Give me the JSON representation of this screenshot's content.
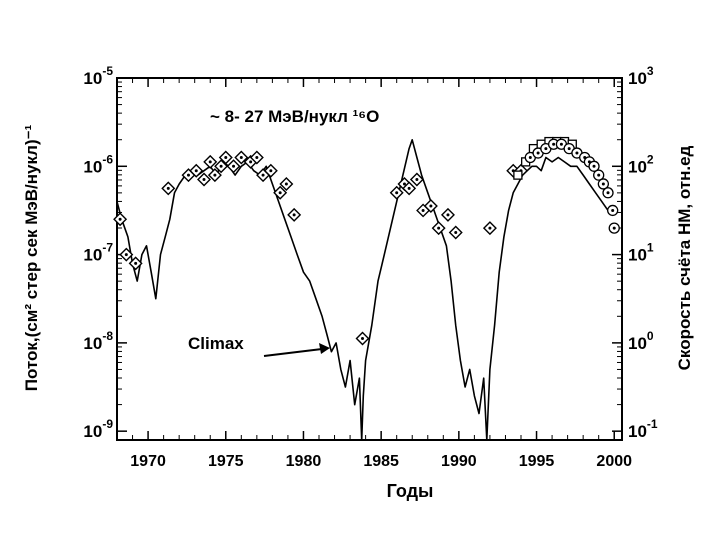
{
  "chart_data": {
    "type": "line",
    "title": "~ 8- 27 МэВ/нукл ¹⁶O",
    "xlabel": "Годы",
    "ylabel_left": "Поток,(см² стер сек МэВ/нукл)⁻¹",
    "ylabel_right": "Скорость счёта НМ, отн.ед",
    "annotation": "Climax",
    "xlim": [
      1968,
      2000.5
    ],
    "ylim_log10": [
      -9.1,
      -5
    ],
    "x_ticks": [
      "1970",
      "1975",
      "1980",
      "1985",
      "1990",
      "1995",
      "2000"
    ],
    "x_tick_values": [
      1970,
      1975,
      1980,
      1985,
      1990,
      1995,
      2000
    ],
    "y_left_ticks": [
      {
        "base": "10",
        "exp": "-5",
        "log": -5
      },
      {
        "base": "10",
        "exp": "-6",
        "log": -6
      },
      {
        "base": "10",
        "exp": "-7",
        "log": -7
      },
      {
        "base": "10",
        "exp": "-8",
        "log": -8
      },
      {
        "base": "10",
        "exp": "-9",
        "log": -9
      }
    ],
    "y_right_ticks": [
      {
        "base": "10",
        "exp": "3",
        "log": -5
      },
      {
        "base": "10",
        "exp": "2",
        "log": -6
      },
      {
        "base": "10",
        "exp": "1",
        "log": -7
      },
      {
        "base": "10",
        "exp": "0",
        "log": -8
      },
      {
        "base": "10",
        "exp": "-1",
        "log": -9
      }
    ],
    "grid": false,
    "series": [
      {
        "marker": "line",
        "x": [
          1968.0,
          1968.3,
          1968.7,
          1969.0,
          1969.3,
          1969.6,
          1969.9,
          1970.2,
          1970.5,
          1970.8,
          1971.1,
          1971.4,
          1971.7,
          1972.0,
          1972.4,
          1972.8,
          1973.2,
          1973.6,
          1974.0,
          1974.4,
          1974.8,
          1975.2,
          1975.6,
          1976.0,
          1976.4,
          1976.8,
          1977.2,
          1977.6,
          1978.0,
          1978.4,
          1978.8,
          1979.2,
          1979.6,
          1980.0,
          1980.4,
          1980.8,
          1981.2,
          1981.5,
          1981.8,
          1982.1,
          1982.4,
          1982.7,
          1983.0,
          1983.3,
          1983.6,
          1983.75,
          1983.85,
          1984.0,
          1984.4,
          1984.8,
          1985.2,
          1985.6,
          1986.0,
          1986.4,
          1986.8,
          1987.0,
          1987.3,
          1987.6,
          1988.0,
          1988.4,
          1988.8,
          1989.2,
          1989.5,
          1989.8,
          1990.1,
          1990.4,
          1990.7,
          1991.0,
          1991.3,
          1991.6,
          1991.8,
          1992.0,
          1992.3,
          1992.6,
          1992.9,
          1993.2,
          1993.5,
          1993.8,
          1994.1,
          1994.4,
          1994.7,
          1995.0,
          1995.3,
          1995.6,
          1996.0,
          1996.4,
          1996.8,
          1997.2,
          1997.6,
          1998.0,
          1998.4,
          1998.8,
          1999.2,
          1999.6,
          2000.0
        ],
        "y_log10": [
          -6.4,
          -6.6,
          -6.8,
          -7.1,
          -7.3,
          -7.0,
          -6.9,
          -7.2,
          -7.5,
          -7.0,
          -6.8,
          -6.6,
          -6.3,
          -6.2,
          -6.1,
          -6.05,
          -6.1,
          -6.05,
          -6.0,
          -6.1,
          -5.95,
          -6.0,
          -6.1,
          -6.0,
          -5.95,
          -6.05,
          -6.1,
          -6.0,
          -6.2,
          -6.4,
          -6.6,
          -6.8,
          -7.0,
          -7.2,
          -7.3,
          -7.5,
          -7.7,
          -7.9,
          -8.1,
          -8.0,
          -8.3,
          -8.5,
          -8.2,
          -8.7,
          -8.4,
          -9.1,
          -8.6,
          -8.2,
          -7.8,
          -7.3,
          -7.0,
          -6.7,
          -6.4,
          -6.1,
          -5.8,
          -5.7,
          -5.9,
          -6.1,
          -6.3,
          -6.5,
          -6.7,
          -6.9,
          -7.3,
          -7.8,
          -8.2,
          -8.5,
          -8.3,
          -8.6,
          -8.8,
          -8.4,
          -9.1,
          -8.3,
          -7.8,
          -7.2,
          -6.8,
          -6.5,
          -6.3,
          -6.2,
          -6.1,
          -6.05,
          -6.0,
          -6.0,
          -6.05,
          -5.9,
          -5.95,
          -5.9,
          -5.95,
          -6.0,
          -6.0,
          -6.1,
          -6.2,
          -6.3,
          -6.4,
          -6.5,
          -6.5
        ]
      },
      {
        "marker": "diamond",
        "x": [
          1968.2,
          1968.6,
          1969.2,
          1971.3,
          1972.6,
          1973.1,
          1973.6,
          1974.0,
          1974.3,
          1974.7,
          1975.0,
          1975.5,
          1976.0,
          1976.6,
          1977.0,
          1977.4,
          1977.9,
          1978.5,
          1978.9,
          1979.4,
          1983.8,
          1986.0,
          1986.5,
          1986.8,
          1987.3,
          1987.7,
          1988.2,
          1988.7,
          1989.3,
          1989.8,
          1992.0,
          1993.5,
          1994.0
        ],
        "y_log10": [
          -6.6,
          -7.0,
          -7.1,
          -6.25,
          -6.1,
          -6.05,
          -6.15,
          -5.95,
          -6.1,
          -6.0,
          -5.9,
          -6.0,
          -5.9,
          -5.95,
          -5.9,
          -6.1,
          -6.05,
          -6.3,
          -6.2,
          -6.55,
          -7.95,
          -6.3,
          -6.2,
          -6.25,
          -6.15,
          -6.5,
          -6.45,
          -6.7,
          -6.55,
          -6.75,
          -6.7,
          -6.05,
          -6.05
        ]
      },
      {
        "marker": "square",
        "x": [
          1993.8,
          1994.3,
          1994.8,
          1995.3,
          1995.8,
          1996.3,
          1996.8,
          1997.3
        ],
        "y_log10": [
          -6.1,
          -5.95,
          -5.8,
          -5.75,
          -5.72,
          -5.72,
          -5.72,
          -5.75
        ]
      },
      {
        "marker": "circle",
        "x": [
          1994.6,
          1995.1,
          1995.6,
          1996.1,
          1996.6,
          1997.1,
          1997.6,
          1998.1,
          1998.4,
          1998.7,
          1999.0,
          1999.3,
          1999.6,
          1999.9,
          2000.0
        ],
        "y_log10": [
          -5.9,
          -5.85,
          -5.8,
          -5.75,
          -5.75,
          -5.8,
          -5.85,
          -5.9,
          -5.95,
          -6.0,
          -6.1,
          -6.2,
          -6.3,
          -6.5,
          -6.7
        ]
      }
    ]
  }
}
